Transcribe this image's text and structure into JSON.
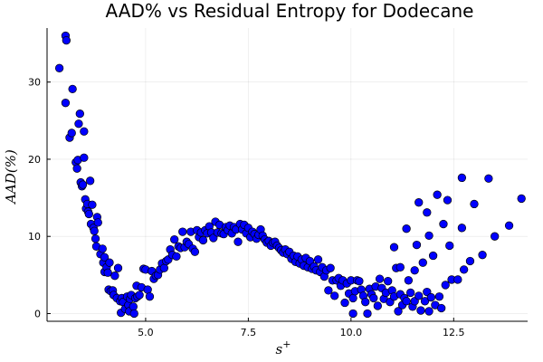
{
  "chart_data": {
    "type": "scatter",
    "title": "AAD% vs Residual Entropy for Dodecane",
    "xlabel": "s⁺",
    "ylabel": "AAD(%)",
    "xlim": [
      2.6,
      14.3
    ],
    "ylim": [
      -1.0,
      37.0
    ],
    "xticks": [
      5.0,
      7.5,
      10.0,
      12.5
    ],
    "xtick_labels": [
      "5.0",
      "7.5",
      "10.0",
      "12.5"
    ],
    "yticks": [
      0,
      10,
      20,
      30
    ],
    "ytick_labels": [
      "0",
      "10",
      "20",
      "30"
    ],
    "grid": true,
    "legend": "none",
    "marker_color": "#0000ff",
    "series": [
      {
        "points": [
          [
            2.9,
            31.8
          ],
          [
            3.05,
            36.0
          ],
          [
            3.07,
            35.4
          ],
          [
            3.05,
            27.3
          ],
          [
            3.15,
            22.8
          ],
          [
            3.2,
            23.4
          ],
          [
            3.22,
            29.1
          ],
          [
            3.3,
            19.6
          ],
          [
            3.33,
            18.8
          ],
          [
            3.35,
            19.9
          ],
          [
            3.37,
            24.6
          ],
          [
            3.4,
            25.9
          ],
          [
            3.42,
            17.0
          ],
          [
            3.45,
            16.5
          ],
          [
            3.47,
            16.7
          ],
          [
            3.5,
            20.2
          ],
          [
            3.5,
            23.6
          ],
          [
            3.53,
            14.8
          ],
          [
            3.55,
            13.6
          ],
          [
            3.58,
            14.2
          ],
          [
            3.6,
            13.2
          ],
          [
            3.62,
            12.9
          ],
          [
            3.65,
            17.2
          ],
          [
            3.67,
            11.6
          ],
          [
            3.7,
            14.1
          ],
          [
            3.73,
            11.1
          ],
          [
            3.75,
            10.7
          ],
          [
            3.78,
            9.7
          ],
          [
            3.8,
            8.7
          ],
          [
            3.82,
            12.5
          ],
          [
            3.84,
            11.8
          ],
          [
            3.9,
            7.7
          ],
          [
            3.95,
            8.4
          ],
          [
            3.97,
            6.6
          ],
          [
            4.0,
            5.4
          ],
          [
            4.0,
            7.3
          ],
          [
            4.05,
            6.0
          ],
          [
            4.08,
            5.3
          ],
          [
            4.1,
            3.1
          ],
          [
            4.12,
            6.6
          ],
          [
            4.15,
            2.9
          ],
          [
            4.2,
            3.0
          ],
          [
            4.22,
            2.4
          ],
          [
            4.25,
            4.9
          ],
          [
            4.3,
            2.0
          ],
          [
            4.33,
            5.9
          ],
          [
            4.38,
            1.6
          ],
          [
            4.4,
            0.1
          ],
          [
            4.42,
            2.0
          ],
          [
            4.45,
            1.5
          ],
          [
            4.5,
            0.6
          ],
          [
            4.55,
            2.2
          ],
          [
            4.58,
            1.1
          ],
          [
            4.6,
            0.3
          ],
          [
            4.62,
            1.9
          ],
          [
            4.65,
            2.4
          ],
          [
            4.7,
            0.9
          ],
          [
            4.72,
            0.0
          ],
          [
            4.75,
            2.0
          ],
          [
            4.78,
            3.6
          ],
          [
            4.8,
            2.2
          ],
          [
            4.85,
            2.4
          ],
          [
            4.9,
            3.4
          ],
          [
            4.95,
            5.8
          ],
          [
            5.0,
            5.7
          ],
          [
            5.05,
            3.1
          ],
          [
            5.1,
            2.2
          ],
          [
            5.15,
            5.5
          ],
          [
            5.2,
            4.5
          ],
          [
            5.25,
            4.9
          ],
          [
            5.3,
            5.0
          ],
          [
            5.35,
            5.7
          ],
          [
            5.4,
            6.5
          ],
          [
            5.45,
            5.9
          ],
          [
            5.5,
            6.8
          ],
          [
            5.55,
            7.0
          ],
          [
            5.6,
            8.3
          ],
          [
            5.65,
            7.6
          ],
          [
            5.7,
            9.6
          ],
          [
            5.75,
            7.4
          ],
          [
            5.8,
            8.7
          ],
          [
            5.85,
            8.5
          ],
          [
            5.9,
            10.6
          ],
          [
            5.95,
            8.6
          ],
          [
            6.0,
            9.3
          ],
          [
            6.05,
            9.0
          ],
          [
            6.1,
            10.6
          ],
          [
            6.15,
            8.4
          ],
          [
            6.2,
            8.0
          ],
          [
            6.25,
            10.8
          ],
          [
            6.3,
            9.9
          ],
          [
            6.35,
            10.5
          ],
          [
            6.4,
            9.5
          ],
          [
            6.45,
            10.8
          ],
          [
            6.5,
            10.4
          ],
          [
            6.55,
            11.3
          ],
          [
            6.6,
            10.5
          ],
          [
            6.65,
            9.8
          ],
          [
            6.7,
            11.9
          ],
          [
            6.75,
            10.5
          ],
          [
            6.8,
            11.5
          ],
          [
            6.85,
            10.4
          ],
          [
            6.9,
            10.3
          ],
          [
            6.95,
            11.2
          ],
          [
            7.0,
            10.8
          ],
          [
            7.05,
            11.4
          ],
          [
            7.1,
            10.4
          ],
          [
            7.15,
            11.2
          ],
          [
            7.2,
            10.9
          ],
          [
            7.25,
            9.3
          ],
          [
            7.3,
            11.6
          ],
          [
            7.35,
            10.9
          ],
          [
            7.4,
            11.5
          ],
          [
            7.45,
            10.4
          ],
          [
            7.5,
            11.1
          ],
          [
            7.55,
            9.9
          ],
          [
            7.6,
            10.6
          ],
          [
            7.65,
            10.3
          ],
          [
            7.7,
            9.7
          ],
          [
            7.75,
            10.2
          ],
          [
            7.8,
            10.9
          ],
          [
            7.85,
            10.1
          ],
          [
            7.9,
            9.6
          ],
          [
            7.95,
            9.2
          ],
          [
            8.0,
            9.4
          ],
          [
            8.05,
            8.8
          ],
          [
            8.1,
            9.2
          ],
          [
            8.15,
            9.3
          ],
          [
            8.2,
            8.8
          ],
          [
            8.25,
            8.5
          ],
          [
            8.3,
            8.2
          ],
          [
            8.35,
            7.9
          ],
          [
            8.4,
            8.3
          ],
          [
            8.45,
            7.7
          ],
          [
            8.5,
            8.0
          ],
          [
            8.55,
            7.1
          ],
          [
            8.6,
            7.5
          ],
          [
            8.65,
            6.7
          ],
          [
            8.7,
            7.4
          ],
          [
            8.75,
            6.5
          ],
          [
            8.8,
            7.0
          ],
          [
            8.85,
            6.2
          ],
          [
            8.9,
            7.2
          ],
          [
            8.95,
            6.0
          ],
          [
            9.0,
            6.8
          ],
          [
            9.05,
            5.8
          ],
          [
            9.1,
            6.1
          ],
          [
            9.15,
            5.6
          ],
          [
            9.2,
            7.0
          ],
          [
            9.25,
            5.4
          ],
          [
            9.3,
            6.0
          ],
          [
            9.35,
            4.8
          ],
          [
            9.4,
            5.6
          ],
          [
            9.45,
            3.0
          ],
          [
            9.5,
            5.9
          ],
          [
            9.55,
            4.3
          ],
          [
            9.6,
            2.3
          ],
          [
            9.65,
            4.3
          ],
          [
            9.7,
            4.6
          ],
          [
            9.75,
            3.6
          ],
          [
            9.8,
            4.3
          ],
          [
            9.85,
            1.4
          ],
          [
            9.9,
            3.9
          ],
          [
            9.95,
            2.6
          ],
          [
            10.0,
            4.3
          ],
          [
            10.05,
            2.0
          ],
          [
            10.05,
            0.0
          ],
          [
            10.1,
            2.9
          ],
          [
            10.15,
            4.3
          ],
          [
            10.2,
            4.2
          ],
          [
            10.25,
            3.1
          ],
          [
            10.3,
            2.3
          ],
          [
            10.35,
            1.5
          ],
          [
            10.4,
            0.0
          ],
          [
            10.45,
            3.2
          ],
          [
            10.5,
            2.5
          ],
          [
            10.55,
            2.0
          ],
          [
            10.6,
            3.5
          ],
          [
            10.65,
            1.0
          ],
          [
            10.7,
            4.5
          ],
          [
            10.75,
            3.3
          ],
          [
            10.8,
            1.9
          ],
          [
            10.85,
            2.7
          ],
          [
            10.9,
            4.2
          ],
          [
            10.95,
            1.5
          ],
          [
            11.0,
            3.0
          ],
          [
            11.05,
            8.6
          ],
          [
            11.05,
            2.2
          ],
          [
            11.1,
            5.9
          ],
          [
            11.15,
            0.3
          ],
          [
            11.2,
            6.0
          ],
          [
            11.2,
            2.5
          ],
          [
            11.25,
            1.1
          ],
          [
            11.3,
            2.0
          ],
          [
            11.35,
            11.0
          ],
          [
            11.35,
            1.6
          ],
          [
            11.4,
            4.3
          ],
          [
            11.45,
            2.7
          ],
          [
            11.5,
            0.9
          ],
          [
            11.55,
            5.6
          ],
          [
            11.55,
            1.6
          ],
          [
            11.6,
            8.9
          ],
          [
            11.65,
            14.4
          ],
          [
            11.65,
            2.3
          ],
          [
            11.7,
            0.4
          ],
          [
            11.75,
            6.6
          ],
          [
            11.8,
            1.6
          ],
          [
            11.85,
            13.1
          ],
          [
            11.85,
            2.8
          ],
          [
            11.9,
            10.1
          ],
          [
            11.9,
            0.3
          ],
          [
            11.95,
            2.1
          ],
          [
            12.0,
            7.5
          ],
          [
            12.05,
            1.1
          ],
          [
            12.1,
            15.4
          ],
          [
            12.15,
            2.2
          ],
          [
            12.2,
            0.7
          ],
          [
            12.25,
            11.6
          ],
          [
            12.3,
            3.7
          ],
          [
            12.35,
            14.7
          ],
          [
            12.4,
            8.8
          ],
          [
            12.45,
            4.4
          ],
          [
            12.6,
            4.4
          ],
          [
            12.7,
            17.6
          ],
          [
            12.7,
            11.1
          ],
          [
            12.75,
            5.7
          ],
          [
            12.9,
            6.8
          ],
          [
            13.0,
            14.2
          ],
          [
            13.2,
            7.6
          ],
          [
            13.35,
            17.5
          ],
          [
            13.5,
            10.0
          ],
          [
            13.85,
            11.4
          ],
          [
            14.15,
            14.9
          ]
        ]
      }
    ]
  }
}
